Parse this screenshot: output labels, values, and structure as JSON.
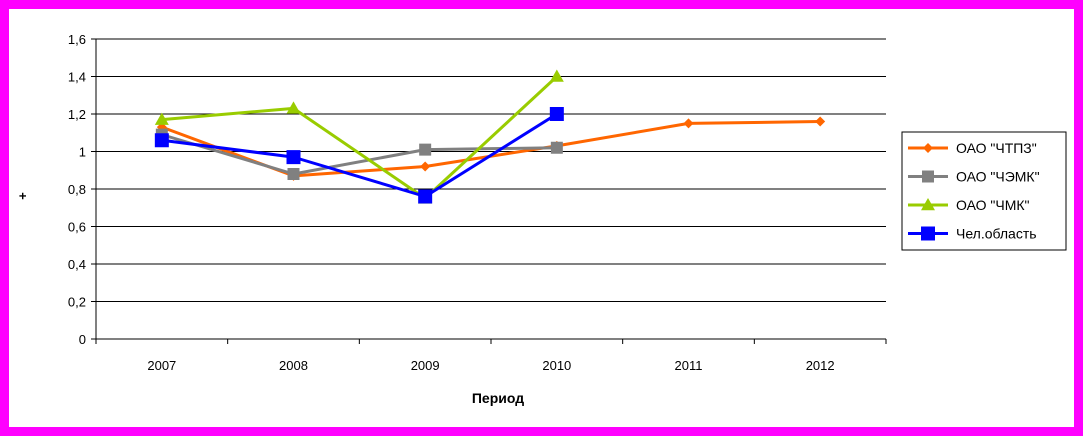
{
  "chart_data": {
    "type": "line",
    "title": "",
    "xlabel": "Период",
    "ylabel": "+",
    "categories": [
      "2007",
      "2008",
      "2009",
      "2010",
      "2011",
      "2012"
    ],
    "ylim": [
      0,
      1.6
    ],
    "yticks": [
      0,
      0.2,
      0.4,
      0.6,
      0.8,
      1,
      1.2,
      1.4,
      1.6
    ],
    "ytick_labels": [
      "0",
      "0,2",
      "0,4",
      "0,6",
      "0,8",
      "1",
      "1,2",
      "1,4",
      "1,6"
    ],
    "grid": "horizontal",
    "legend_position": "right",
    "series": [
      {
        "name": "ОАО \"ЧТПЗ\"",
        "color": "#ff6600",
        "marker": "diamond",
        "values": [
          1.13,
          0.87,
          0.92,
          1.03,
          1.15,
          1.16
        ]
      },
      {
        "name": "ОАО \"ЧЭМК\"",
        "color": "#808080",
        "marker": "square",
        "values": [
          1.09,
          0.88,
          1.01,
          1.02,
          null,
          null
        ]
      },
      {
        "name": "ОАО \"ЧМК\"",
        "color": "#99cc00",
        "marker": "triangle",
        "values": [
          1.17,
          1.23,
          0.75,
          1.4,
          null,
          null
        ]
      },
      {
        "name": "Чел.область",
        "color": "#0000ff",
        "marker": "square",
        "values": [
          1.06,
          0.97,
          0.76,
          1.2,
          null,
          null
        ]
      }
    ]
  },
  "frame_color": "#ff00ff"
}
